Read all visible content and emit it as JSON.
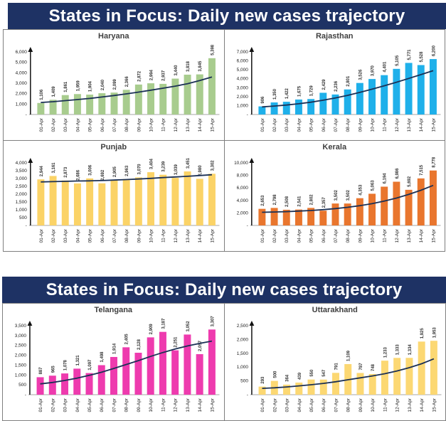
{
  "panels": [
    {
      "header": "States in Focus: Daily new cases trajectory"
    },
    {
      "header": "States in Focus: Daily new cases trajectory"
    }
  ],
  "colors": {
    "header_bg": "#1E3264",
    "header_text": "#FFFFFF",
    "trend_line": "#1B3055",
    "axis_arrow": "#111111",
    "border": "#7F7F7F",
    "haryana_bar": "#A8CC8E",
    "rajasthan_bar": "#1FB0EA",
    "punjab_bar": "#FBD367",
    "kerala_bar": "#E9762E",
    "telangana_bar": "#EE3BAE",
    "uttarakhand_bar": "#FCD873"
  },
  "chart_data": [
    {
      "id": "haryana",
      "type": "bar",
      "title": "Haryana",
      "bar_color": "#A8CC8E",
      "ymax": 6000,
      "ystep": 1000,
      "ylim": [
        0,
        6000
      ],
      "categories": [
        "01-Apr",
        "02-Apr",
        "03-Apr",
        "04-Apr",
        "05-Apr",
        "06-Apr",
        "07-Apr",
        "08-Apr",
        "09-Apr",
        "10-Apr",
        "11-Apr",
        "12-Apr",
        "13-Apr",
        "14-Apr",
        "15-Apr"
      ],
      "values": [
        1106,
        1409,
        1861,
        1959,
        1904,
        2040,
        2099,
        2366,
        2872,
        2994,
        2937,
        3440,
        3818,
        3845,
        5398
      ],
      "trend": [
        1150,
        1230,
        1330,
        1430,
        1540,
        1680,
        1820,
        1980,
        2150,
        2330,
        2520,
        2720,
        2950,
        3250,
        3600
      ]
    },
    {
      "id": "rajasthan",
      "type": "bar",
      "title": "Rajasthan",
      "bar_color": "#1FB0EA",
      "ymax": 7000,
      "ystep": 1000,
      "ylim": [
        0,
        7000
      ],
      "categories": [
        "01-Apr",
        "02-Apr",
        "03-Apr",
        "04-Apr",
        "05-Apr",
        "06-Apr",
        "07-Apr",
        "08-Apr",
        "09-Apr",
        "10-Apr",
        "11-Apr",
        "12-Apr",
        "13-Apr",
        "14-Apr",
        "15-Apr"
      ],
      "values": [
        906,
        1350,
        1422,
        1675,
        1729,
        2429,
        2236,
        2801,
        3526,
        3970,
        4401,
        5105,
        5771,
        5528,
        6200
      ],
      "trend": [
        850,
        950,
        1060,
        1200,
        1380,
        1600,
        1850,
        2140,
        2470,
        2830,
        3210,
        3610,
        4030,
        4460,
        4900
      ]
    },
    {
      "id": "punjab",
      "type": "bar",
      "title": "Punjab",
      "bar_color": "#FBD367",
      "ymax": 4000,
      "ystep": 500,
      "ylim": [
        0,
        4000
      ],
      "categories": [
        "01-Apr",
        "02-Apr",
        "03-Apr",
        "04-Apr",
        "05-Apr",
        "06-Apr",
        "07-Apr",
        "08-Apr",
        "09-Apr",
        "10-Apr",
        "11-Apr",
        "12-Apr",
        "13-Apr",
        "14-Apr",
        "15-Apr"
      ],
      "values": [
        2944,
        3161,
        2873,
        2686,
        3006,
        2692,
        2905,
        2963,
        3070,
        3404,
        3239,
        3039,
        3451,
        2980,
        3302
      ],
      "trend": [
        2780,
        2800,
        2820,
        2840,
        2850,
        2870,
        2900,
        2930,
        2970,
        3010,
        3060,
        3100,
        3140,
        3190,
        3240
      ]
    },
    {
      "id": "kerala",
      "type": "bar",
      "title": "Kerala",
      "bar_color": "#E9762E",
      "ymax": 10000,
      "ystep": 2000,
      "ylim": [
        0,
        10000
      ],
      "categories": [
        "01-Apr",
        "02-Apr",
        "03-Apr",
        "04-Apr",
        "05-Apr",
        "06-Apr",
        "07-Apr",
        "08-Apr",
        "09-Apr",
        "10-Apr",
        "11-Apr",
        "12-Apr",
        "13-Apr",
        "14-Apr",
        "15-Apr"
      ],
      "values": [
        2653,
        2798,
        2508,
        2541,
        2802,
        2357,
        3502,
        3502,
        4353,
        5063,
        6194,
        6986,
        5692,
        7515,
        8778
      ],
      "trend": [
        2100,
        2150,
        2210,
        2290,
        2390,
        2520,
        2690,
        2900,
        3160,
        3480,
        3890,
        4380,
        4950,
        5620,
        6400
      ]
    },
    {
      "id": "telangana",
      "type": "bar",
      "title": "Telangana",
      "bar_color": "#EE3BAE",
      "ymax": 3500,
      "ystep": 500,
      "ylim": [
        0,
        3500
      ],
      "categories": [
        "01-Apr",
        "02-Apr",
        "03-Apr",
        "04-Apr",
        "05-Apr",
        "06-Apr",
        "07-Apr",
        "08-Apr",
        "09-Apr",
        "10-Apr",
        "11-Apr",
        "12-Apr",
        "13-Apr",
        "14-Apr",
        "15-Apr"
      ],
      "values": [
        887,
        965,
        1078,
        1321,
        1097,
        1498,
        1914,
        2405,
        2128,
        2909,
        3187,
        2251,
        3052,
        2057,
        3307
      ],
      "trend": [
        550,
        620,
        720,
        840,
        980,
        1140,
        1330,
        1530,
        1730,
        1940,
        2140,
        2320,
        2470,
        2600,
        2720
      ]
    },
    {
      "id": "uttarakhand",
      "type": "bar",
      "title": "Uttarakhand",
      "bar_color": "#FCD873",
      "ymax": 2500,
      "ystep": 500,
      "ylim": [
        0,
        2500
      ],
      "categories": [
        "01-Apr",
        "02-Apr",
        "03-Apr",
        "04-Apr",
        "05-Apr",
        "06-Apr",
        "07-Apr",
        "08-Apr",
        "09-Apr",
        "10-Apr",
        "11-Apr",
        "12-Apr",
        "13-Apr",
        "14-Apr",
        "15-Apr"
      ],
      "values": [
        293,
        500,
        364,
        439,
        550,
        547,
        791,
        1109,
        787,
        748,
        1233,
        1333,
        1334,
        1925,
        1953
      ],
      "trend": [
        230,
        250,
        280,
        320,
        360,
        410,
        470,
        540,
        610,
        680,
        760,
        860,
        980,
        1120,
        1300
      ]
    }
  ],
  "axis": {
    "zero_tick_label": "-"
  }
}
